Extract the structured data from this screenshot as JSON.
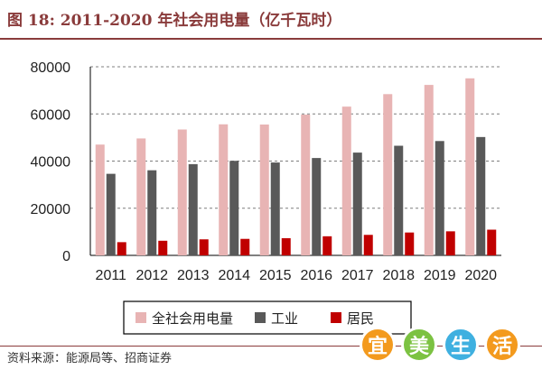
{
  "figure": {
    "title": "图 18:  2011-2020 年社会用电量（亿千瓦时）",
    "source": "资料来源：能源局等、招商证券"
  },
  "watermark": {
    "chars": [
      "宜",
      "美",
      "生",
      "活"
    ],
    "colors": [
      "#f39a1e",
      "#7cc242",
      "#3fb0e0",
      "#f39a1e"
    ]
  },
  "chart_data": {
    "type": "bar",
    "categories": [
      "2011",
      "2012",
      "2013",
      "2014",
      "2015",
      "2016",
      "2017",
      "2018",
      "2019",
      "2020"
    ],
    "series": [
      {
        "name": "全社会用电量",
        "color": "#e8b4b4",
        "values": [
          47000,
          49600,
          53400,
          55600,
          55500,
          59700,
          63100,
          68400,
          72300,
          75100
        ]
      },
      {
        "name": "工业",
        "color": "#595959",
        "values": [
          34600,
          36100,
          38700,
          40100,
          39400,
          41300,
          43600,
          46500,
          48500,
          50200
        ]
      },
      {
        "name": "居民",
        "color": "#c00000",
        "values": [
          5600,
          6200,
          6800,
          7000,
          7300,
          8100,
          8700,
          9700,
          10200,
          10900
        ]
      }
    ],
    "ylim": [
      0,
      80000
    ],
    "yticks": [
      "0",
      "20000",
      "40000",
      "60000",
      "80000"
    ],
    "grid": "dashed horizontal",
    "legend_position": "bottom"
  }
}
